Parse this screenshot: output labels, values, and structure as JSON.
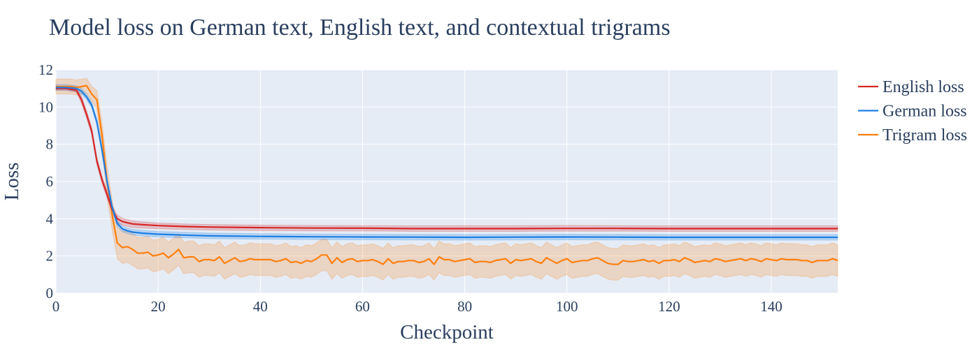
{
  "chart_data": {
    "type": "line",
    "title": "Model loss on German text, English text, and contextual trigrams",
    "xlabel": "Checkpoint",
    "ylabel": "Loss",
    "xlim": [
      0,
      153
    ],
    "ylim": [
      0,
      12
    ],
    "xticks": [
      0,
      20,
      40,
      60,
      80,
      100,
      120,
      140
    ],
    "yticks": [
      0,
      2,
      4,
      6,
      8,
      10,
      12
    ],
    "grid": true,
    "legend_position": "right",
    "plot_background": "#e5ecf6",
    "series": [
      {
        "name": "English loss",
        "color": "#d62728",
        "x": [
          0,
          2,
          4,
          5,
          6,
          7,
          8,
          9,
          10,
          11,
          12,
          13,
          14,
          15,
          17,
          20,
          25,
          30,
          40,
          50,
          60,
          70,
          80,
          90,
          100,
          110,
          120,
          130,
          140,
          153
        ],
        "y": [
          11.0,
          11.0,
          10.9,
          10.4,
          9.6,
          8.7,
          7.1,
          6.1,
          5.3,
          4.5,
          4.0,
          3.85,
          3.78,
          3.72,
          3.68,
          3.63,
          3.58,
          3.55,
          3.52,
          3.5,
          3.49,
          3.47,
          3.47,
          3.47,
          3.48,
          3.48,
          3.47,
          3.47,
          3.47,
          3.47
        ],
        "band_upper": [
          11.1,
          11.1,
          11.0,
          10.6,
          9.8,
          8.9,
          7.3,
          6.3,
          5.5,
          4.7,
          4.2,
          4.03,
          3.95,
          3.88,
          3.83,
          3.77,
          3.72,
          3.69,
          3.66,
          3.64,
          3.63,
          3.62,
          3.63,
          3.63,
          3.64,
          3.63,
          3.62,
          3.62,
          3.62,
          3.62
        ],
        "band_lower": [
          10.9,
          10.9,
          10.8,
          10.2,
          9.4,
          8.5,
          6.9,
          5.9,
          5.1,
          4.3,
          3.8,
          3.65,
          3.58,
          3.53,
          3.5,
          3.46,
          3.42,
          3.39,
          3.36,
          3.35,
          3.34,
          3.32,
          3.32,
          3.32,
          3.33,
          3.33,
          3.32,
          3.32,
          3.32,
          3.32
        ]
      },
      {
        "name": "German loss",
        "color": "#1c7ee3",
        "x": [
          0,
          2,
          4,
          5,
          6,
          7,
          8,
          9,
          10,
          11,
          12,
          13,
          14,
          15,
          17,
          20,
          25,
          30,
          40,
          50,
          60,
          70,
          80,
          90,
          100,
          110,
          120,
          130,
          140,
          153
        ],
        "y": [
          11.05,
          11.05,
          11.0,
          10.85,
          10.55,
          10.1,
          9.2,
          7.7,
          6.0,
          4.6,
          3.75,
          3.45,
          3.35,
          3.28,
          3.22,
          3.17,
          3.12,
          3.08,
          3.05,
          3.03,
          3.02,
          3.01,
          3.0,
          3.01,
          3.02,
          3.01,
          3.0,
          3.0,
          3.0,
          3.0
        ],
        "band_upper": [
          11.2,
          11.2,
          11.15,
          11.0,
          10.7,
          10.25,
          9.35,
          7.85,
          6.15,
          4.75,
          3.9,
          3.6,
          3.5,
          3.43,
          3.37,
          3.32,
          3.27,
          3.23,
          3.2,
          3.18,
          3.17,
          3.16,
          3.15,
          3.16,
          3.17,
          3.16,
          3.15,
          3.15,
          3.15,
          3.15
        ],
        "band_lower": [
          10.9,
          10.9,
          10.85,
          10.7,
          10.4,
          9.95,
          9.05,
          7.55,
          5.85,
          4.45,
          3.6,
          3.3,
          3.2,
          3.13,
          3.07,
          3.02,
          2.97,
          2.93,
          2.9,
          2.88,
          2.87,
          2.86,
          2.85,
          2.86,
          2.87,
          2.86,
          2.85,
          2.85,
          2.85,
          2.85
        ]
      },
      {
        "name": "Trigram loss",
        "color": "#ff7f0e",
        "x": [
          0,
          1,
          2,
          3,
          4,
          5,
          6,
          7,
          8,
          9,
          10,
          11,
          12,
          13,
          14,
          15,
          16,
          17,
          18,
          19,
          20,
          21,
          22,
          23,
          24,
          25,
          26,
          27,
          28,
          29,
          30,
          31,
          32,
          33,
          34,
          35,
          36,
          37,
          38,
          39,
          40,
          41,
          42,
          43,
          44,
          45,
          46,
          47,
          48,
          49,
          50,
          51,
          52,
          53,
          54,
          55,
          56,
          57,
          58,
          59,
          60,
          61,
          62,
          63,
          64,
          65,
          66,
          67,
          68,
          69,
          70,
          71,
          72,
          73,
          74,
          75,
          76,
          77,
          78,
          79,
          80,
          81,
          82,
          83,
          84,
          85,
          86,
          87,
          88,
          89,
          90,
          91,
          92,
          93,
          94,
          95,
          96,
          97,
          98,
          99,
          100,
          101,
          102,
          103,
          104,
          105,
          106,
          107,
          108,
          109,
          110,
          111,
          112,
          113,
          114,
          115,
          116,
          117,
          118,
          119,
          120,
          121,
          122,
          123,
          124,
          125,
          126,
          127,
          128,
          129,
          130,
          131,
          132,
          133,
          134,
          135,
          136,
          137,
          138,
          139,
          140,
          141,
          142,
          143,
          144,
          145,
          146,
          147,
          148,
          149,
          150,
          151,
          152,
          153
        ],
        "y": [
          11.1,
          11.1,
          11.1,
          11.1,
          11.05,
          11.1,
          11.15,
          10.7,
          10.4,
          8.5,
          6.0,
          4.2,
          2.7,
          2.45,
          2.5,
          2.35,
          2.15,
          2.15,
          2.2,
          2.0,
          2.05,
          2.15,
          1.9,
          2.1,
          2.35,
          1.9,
          1.95,
          1.95,
          1.7,
          1.8,
          1.8,
          1.75,
          1.95,
          1.6,
          1.75,
          1.9,
          1.7,
          1.75,
          1.85,
          1.8,
          1.8,
          1.8,
          1.8,
          1.7,
          1.75,
          1.85,
          1.65,
          1.7,
          1.6,
          1.75,
          1.7,
          1.85,
          2.05,
          2.05,
          1.6,
          1.9,
          1.65,
          1.8,
          1.85,
          1.7,
          1.75,
          1.75,
          1.8,
          1.7,
          1.55,
          1.85,
          1.6,
          1.7,
          1.7,
          1.75,
          1.75,
          1.65,
          1.7,
          1.85,
          1.55,
          1.95,
          1.8,
          1.8,
          1.7,
          1.75,
          1.8,
          1.85,
          1.65,
          1.7,
          1.7,
          1.65,
          1.75,
          1.8,
          1.85,
          1.6,
          1.8,
          1.75,
          1.8,
          1.85,
          1.7,
          1.6,
          1.9,
          1.75,
          1.6,
          1.75,
          1.85,
          1.65,
          1.7,
          1.75,
          1.75,
          1.85,
          1.9,
          1.75,
          1.6,
          1.55,
          1.55,
          1.75,
          1.7,
          1.7,
          1.75,
          1.8,
          1.7,
          1.75,
          1.6,
          1.75,
          1.75,
          1.8,
          1.7,
          1.9,
          1.8,
          1.65,
          1.7,
          1.75,
          1.7,
          1.85,
          1.8,
          1.7,
          1.75,
          1.8,
          1.85,
          1.75,
          1.85,
          1.8,
          1.7,
          1.85,
          1.8,
          1.75,
          1.85,
          1.8,
          1.8,
          1.8,
          1.75,
          1.75,
          1.65,
          1.75,
          1.75,
          1.75,
          1.85,
          1.75
        ],
        "band_spread": [
          0.4,
          0.4,
          0.4,
          0.4,
          0.4,
          0.4,
          0.4,
          0.4,
          0.5,
          0.7,
          0.8,
          0.8,
          0.85,
          0.85,
          0.85,
          0.85,
          0.85,
          0.85,
          0.85,
          0.85,
          0.85,
          0.85,
          0.85,
          0.85,
          0.85,
          0.85,
          0.85,
          0.85,
          0.85,
          0.85,
          0.85,
          0.85,
          0.85,
          0.85,
          0.85,
          0.85,
          0.85,
          0.85,
          0.85,
          0.85,
          0.85,
          0.85,
          0.85,
          0.85,
          0.85,
          0.85,
          0.85,
          0.85,
          0.85,
          0.85,
          0.85,
          0.85,
          0.85,
          0.85,
          0.85,
          0.85,
          0.85,
          0.85,
          0.85,
          0.85,
          0.85,
          0.85,
          0.85,
          0.85,
          0.85,
          0.85,
          0.85,
          0.85,
          0.85,
          0.85,
          0.85,
          0.85,
          0.85,
          0.85,
          0.85,
          0.85,
          0.85,
          0.85,
          0.85,
          0.85,
          0.85,
          0.85,
          0.85,
          0.85,
          0.85,
          0.85,
          0.85,
          0.85,
          0.85,
          0.85,
          0.85,
          0.85,
          0.85,
          0.85,
          0.85,
          0.85,
          0.85,
          0.85,
          0.85,
          0.85,
          0.85,
          0.85,
          0.85,
          0.85,
          0.85,
          0.85,
          0.85,
          0.85,
          0.85,
          0.85,
          0.85,
          0.85,
          0.85,
          0.85,
          0.85,
          0.85,
          0.85,
          0.85,
          0.85,
          0.85,
          0.85,
          0.85,
          0.85,
          0.85,
          0.85,
          0.85,
          0.85,
          0.85,
          0.85,
          0.85,
          0.85,
          0.85,
          0.85,
          0.85,
          0.85,
          0.85,
          0.85,
          0.85,
          0.85,
          0.85,
          0.85,
          0.85,
          0.85,
          0.85,
          0.85,
          0.85,
          0.85,
          0.85,
          0.85,
          0.85,
          0.85,
          0.85,
          0.85,
          0.85
        ]
      }
    ]
  }
}
